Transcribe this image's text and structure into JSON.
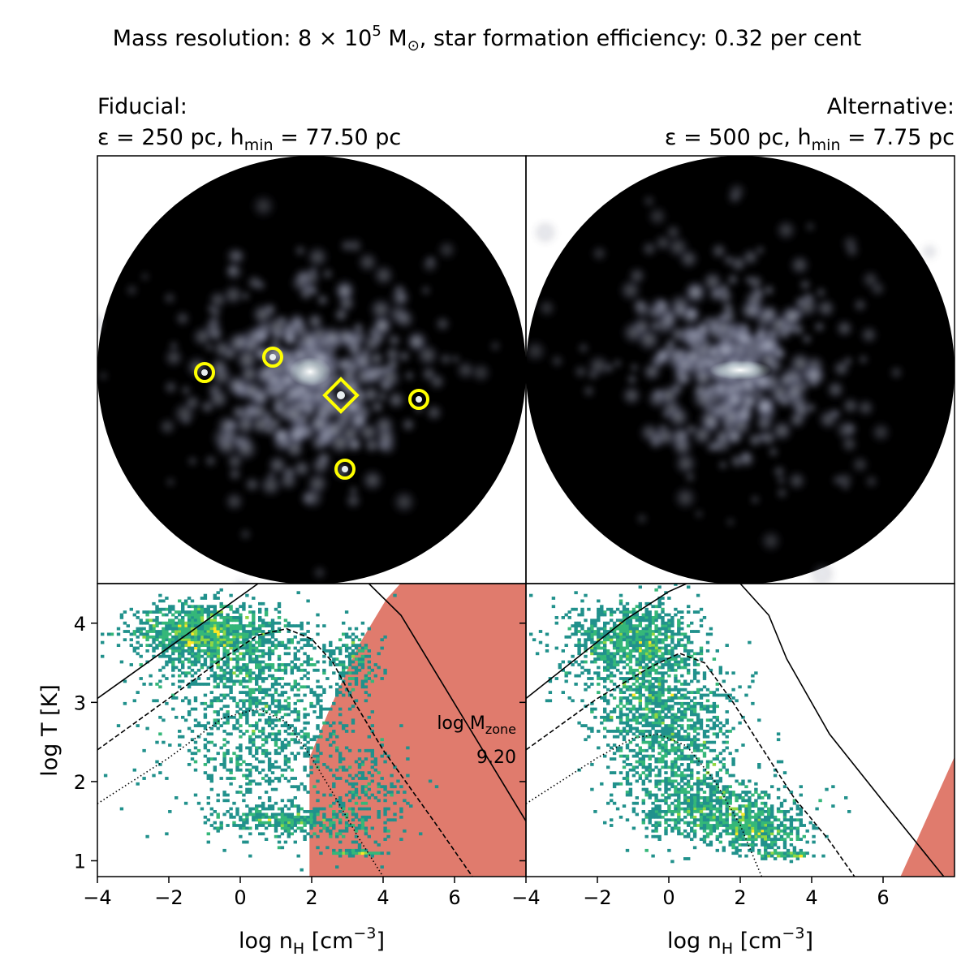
{
  "figure": {
    "suptitle": {
      "pre": "Mass resolution: 8 × 10",
      "sup": "5",
      "mid": " M",
      "sub": "⊙",
      "post": ", star formation efficiency: 0.32 per cent"
    },
    "panels": [
      {
        "id": "fiducial",
        "title_line1": "Fiducial:",
        "title_line2": {
          "pre": "ε = 250 pc, h",
          "sub": "min",
          "post": " = 77.50 pc"
        }
      },
      {
        "id": "alternative",
        "title_line1": "Alternative:",
        "title_line2": {
          "pre": "ε = 500 pc, h",
          "sub": "min",
          "post": " = 7.75 pc"
        }
      }
    ],
    "annotation": {
      "line1_pre": "log M",
      "line1_sub": "zone",
      "line2": "9.20"
    },
    "marker_color": "#ffff00",
    "excluded_region_color": "#e07b6d",
    "colormap": [
      "#21918c",
      "#35b779",
      "#90d743",
      "#fde725"
    ]
  },
  "chart_data": [
    {
      "type": "image",
      "panel": "fiducial",
      "description_markers": [
        {
          "kind": "circle",
          "note": "clump"
        },
        {
          "kind": "circle",
          "note": "clump"
        },
        {
          "kind": "circle",
          "note": "clump"
        },
        {
          "kind": "circle",
          "note": "clump"
        },
        {
          "kind": "diamond",
          "note": "clump"
        }
      ]
    },
    {
      "type": "image",
      "panel": "alternative"
    },
    {
      "type": "heatmap",
      "panel": "fiducial",
      "xlabel": {
        "pre": "log n",
        "sub": "H",
        "mid": " [cm",
        "sup": "−3",
        "post": "]"
      },
      "ylabel": "log T [K]",
      "xlim": [
        -4,
        8
      ],
      "ylim": [
        0.8,
        4.5
      ],
      "xticks": [
        -4,
        -2,
        0,
        2,
        4,
        6
      ],
      "xtick_labels": [
        "−4",
        "−2",
        "0",
        "2",
        "4",
        "6"
      ],
      "yticks": [
        1,
        2,
        3,
        4
      ],
      "yticks_labels": [
        "1",
        "2",
        "3",
        "4"
      ],
      "lines": [
        {
          "style": "solid",
          "points": [
            [
              -4,
              3.05
            ],
            [
              0.5,
              4.5
            ]
          ]
        },
        {
          "style": "solid",
          "points": [
            [
              3.6,
              4.5
            ],
            [
              4.5,
              4.1
            ],
            [
              8,
              1.5
            ]
          ]
        },
        {
          "style": "dashed",
          "points": [
            [
              -4,
              2.4
            ],
            [
              -2,
              3.05
            ],
            [
              -0.5,
              3.55
            ],
            [
              0.5,
              3.85
            ],
            [
              1.3,
              3.93
            ],
            [
              2,
              3.8
            ],
            [
              2.6,
              3.5
            ],
            [
              3.2,
              3.0
            ],
            [
              4,
              2.4
            ],
            [
              5.5,
              1.45
            ],
            [
              6.5,
              0.8
            ]
          ]
        },
        {
          "style": "dotted",
          "points": [
            [
              -4,
              1.72
            ],
            [
              -2,
              2.3
            ],
            [
              -0.5,
              2.8
            ],
            [
              0.5,
              2.92
            ],
            [
              1.3,
              2.75
            ],
            [
              2,
              2.3
            ],
            [
              2.6,
              1.85
            ],
            [
              3.3,
              1.3
            ],
            [
              4,
              0.8
            ]
          ]
        }
      ],
      "excluded_region": [
        [
          1.95,
          0.8
        ],
        [
          1.95,
          2.3
        ],
        [
          2.5,
          2.9
        ],
        [
          3.3,
          3.7
        ],
        [
          4.1,
          4.3
        ],
        [
          4.5,
          4.5
        ],
        [
          8,
          4.5
        ],
        [
          8,
          0.8
        ]
      ],
      "density_blobs": [
        {
          "x": -1.2,
          "y": 3.9,
          "sx": 0.9,
          "sy": 0.18,
          "n": 900
        },
        {
          "x": 0.0,
          "y": 3.6,
          "sx": 1.2,
          "sy": 0.35,
          "n": 700
        },
        {
          "x": 0.6,
          "y": 2.6,
          "sx": 1.3,
          "sy": 0.55,
          "n": 900
        },
        {
          "x": 1.5,
          "y": 1.5,
          "sx": 1.0,
          "sy": 0.1,
          "n": 350
        },
        {
          "x": 3.2,
          "y": 3.5,
          "sx": 0.4,
          "sy": 0.2,
          "n": 150
        },
        {
          "x": 3.5,
          "y": 1.8,
          "sx": 0.6,
          "sy": 0.35,
          "n": 200
        },
        {
          "x": 3.3,
          "y": 1.1,
          "sx": 0.4,
          "sy": 0.02,
          "n": 60
        }
      ]
    },
    {
      "type": "heatmap",
      "panel": "alternative",
      "xlabel": {
        "pre": "log n",
        "sub": "H",
        "mid": " [cm",
        "sup": "−3",
        "post": "]"
      },
      "ylabel": "",
      "xlim": [
        -4,
        8
      ],
      "ylim": [
        0.8,
        4.5
      ],
      "xticks": [
        -4,
        -2,
        0,
        2,
        4,
        6
      ],
      "xtick_labels": [
        "−4",
        "−2",
        "0",
        "2",
        "4",
        "6"
      ],
      "yticks": [
        1,
        2,
        3,
        4
      ],
      "yticks_labels": [
        "",
        "",
        "",
        ""
      ],
      "lines": [
        {
          "style": "solid",
          "points": [
            [
              -4,
              3.05
            ],
            [
              -1.2,
              4.05
            ],
            [
              0,
              4.4
            ],
            [
              0.5,
              4.5
            ]
          ]
        },
        {
          "style": "solid",
          "points": [
            [
              2,
              4.5
            ],
            [
              2.8,
              4.1
            ],
            [
              3.3,
              3.55
            ],
            [
              4.5,
              2.6
            ],
            [
              6,
              1.75
            ],
            [
              7.7,
              0.8
            ]
          ]
        },
        {
          "style": "dashed",
          "points": [
            [
              -4,
              2.4
            ],
            [
              -2,
              3.05
            ],
            [
              -0.5,
              3.45
            ],
            [
              0.3,
              3.62
            ],
            [
              1.0,
              3.5
            ],
            [
              1.8,
              3.0
            ],
            [
              2.5,
              2.5
            ],
            [
              3.5,
              1.8
            ],
            [
              4.5,
              1.25
            ],
            [
              5.2,
              0.8
            ]
          ]
        },
        {
          "style": "dotted",
          "points": [
            [
              -4,
              1.72
            ],
            [
              -2,
              2.3
            ],
            [
              -1,
              2.55
            ],
            [
              -0.3,
              2.6
            ],
            [
              0.5,
              2.45
            ],
            [
              1.3,
              2.0
            ],
            [
              2,
              1.45
            ],
            [
              2.6,
              0.8
            ]
          ]
        }
      ],
      "excluded_region": [
        [
          6.5,
          0.8
        ],
        [
          7.0,
          1.3
        ],
        [
          7.5,
          1.8
        ],
        [
          8,
          2.3
        ],
        [
          8,
          0.8
        ]
      ],
      "density_blobs": [
        {
          "x": -1.0,
          "y": 3.8,
          "sx": 0.9,
          "sy": 0.25,
          "n": 900
        },
        {
          "x": -0.5,
          "y": 3.1,
          "sx": 1.0,
          "sy": 0.35,
          "n": 700
        },
        {
          "x": 0.2,
          "y": 2.3,
          "sx": 0.9,
          "sy": 0.45,
          "n": 800
        },
        {
          "x": 1.5,
          "y": 1.6,
          "sx": 1.1,
          "sy": 0.18,
          "n": 700
        },
        {
          "x": 2.6,
          "y": 1.35,
          "sx": 0.7,
          "sy": 0.12,
          "n": 300
        },
        {
          "x": 3.2,
          "y": 1.08,
          "sx": 0.4,
          "sy": 0.02,
          "n": 80
        }
      ]
    }
  ]
}
